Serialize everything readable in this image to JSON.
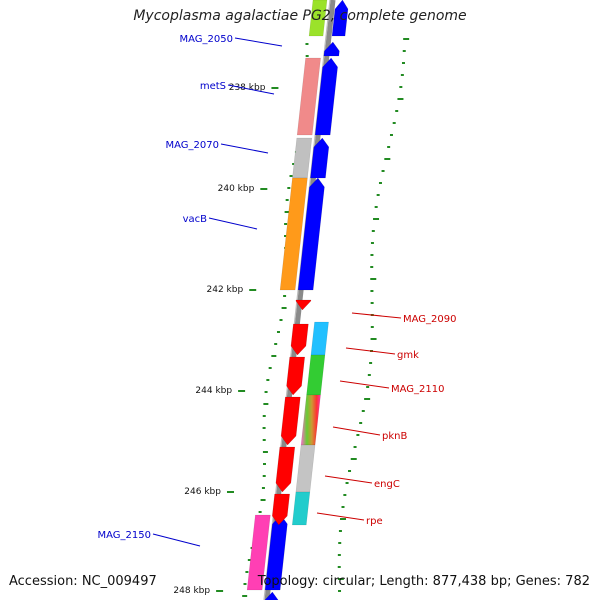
{
  "title": "Mycoplasma agalactiae PG2, complete genome",
  "accession": "Accession: NC_009497",
  "topology": "Topology: circular; Length: 877,438 bp; Genes: 782",
  "colors": {
    "backbone": "#8a8a8a",
    "forward_label": "#0000cc",
    "reverse_label": "#cc0000",
    "forward_arrow": "#0000ff",
    "reverse_arrow": "#ff0000",
    "gc_tick": "#228b22"
  },
  "kbp_ticks": [
    "238 kbp",
    "240 kbp",
    "242 kbp",
    "244 kbp",
    "246 kbp",
    "248 kbp"
  ],
  "genes": [
    {
      "name": "MAG_2050",
      "strand": "forward"
    },
    {
      "name": "metS",
      "strand": "forward"
    },
    {
      "name": "MAG_2070",
      "strand": "forward"
    },
    {
      "name": "vacB",
      "strand": "forward"
    },
    {
      "name": "MAG_2090",
      "strand": "reverse"
    },
    {
      "name": "gmk",
      "strand": "reverse"
    },
    {
      "name": "MAG_2110",
      "strand": "reverse"
    },
    {
      "name": "pknB",
      "strand": "reverse"
    },
    {
      "name": "engC",
      "strand": "reverse"
    },
    {
      "name": "rpe",
      "strand": "reverse"
    },
    {
      "name": "MAG_2150",
      "strand": "forward"
    }
  ]
}
